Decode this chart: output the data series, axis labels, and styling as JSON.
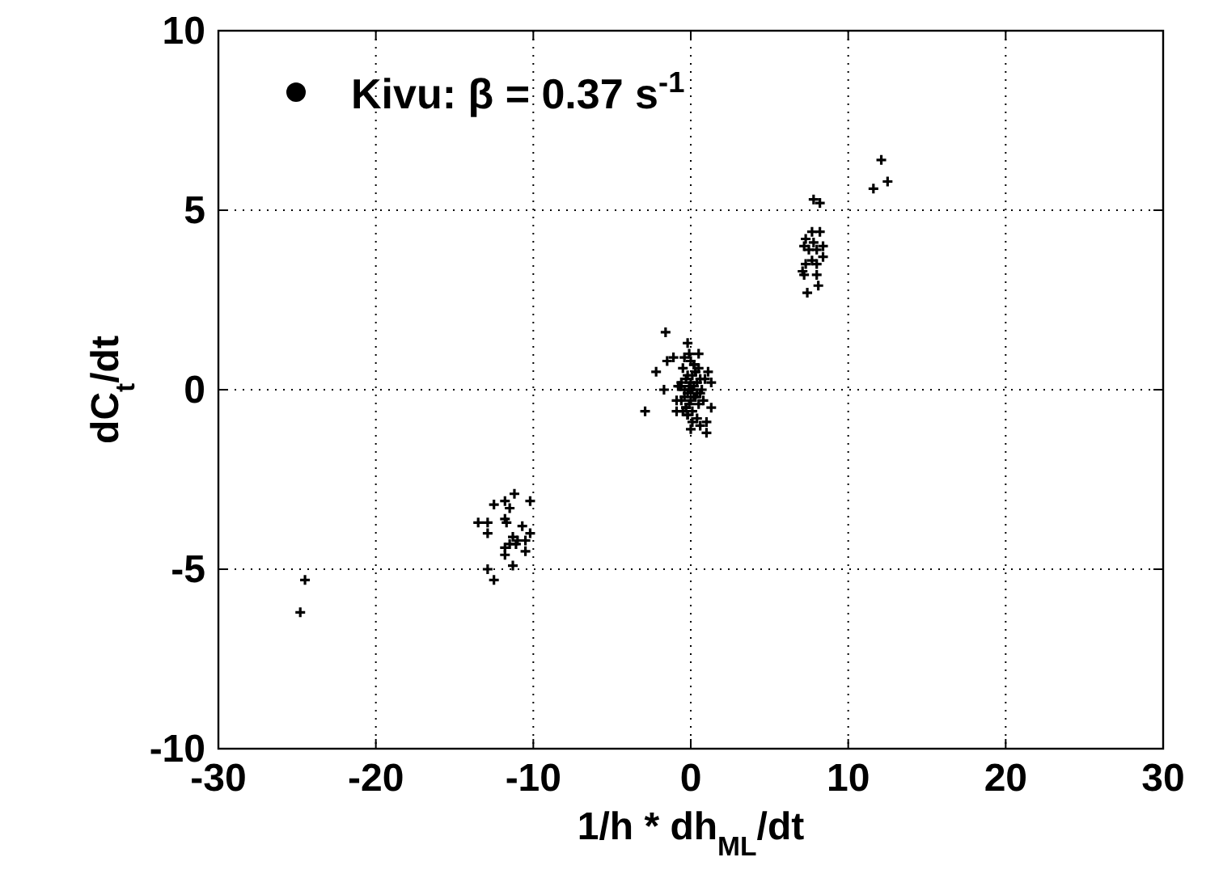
{
  "chart_data": {
    "type": "scatter",
    "xlabel": "1/h * dh$_{ML}$/dt",
    "ylabel": "dC$_{t}$/dt",
    "xlim": [
      -30,
      30
    ],
    "xticks": [
      -30,
      -20,
      -10,
      0,
      10,
      20,
      30
    ],
    "ylim": [
      -10,
      10
    ],
    "yticks": [
      -10,
      -5,
      0,
      5,
      10
    ],
    "grid": true,
    "legend": "top left",
    "marker": "cross",
    "series": [
      {
        "name": "Kivu: β = 0.37 s$^{-1}$",
        "color": "#000000",
        "x": [
          -24.5,
          -24.8,
          -11.2,
          -10.2,
          -11.8,
          -12.5,
          -11.5,
          -11.8,
          -13.5,
          -12.9,
          -12.9,
          -10.7,
          -11.7,
          -10.2,
          -11.3,
          -11.0,
          -11.5,
          -11.8,
          -10.5,
          -10.5,
          -11.8,
          -11.1,
          -11.3,
          -12.9,
          -12.5,
          12.1,
          12.5,
          11.6,
          7.8,
          8.2,
          8.2,
          7.7,
          7.3,
          7.8,
          8.4,
          7.2,
          7.5,
          8.0,
          8.4,
          7.7,
          7.3,
          8.0,
          7.1,
          8.0,
          7.2,
          8.1,
          7.4,
          -1.6,
          -0.2,
          0.5,
          -2.2,
          -1.5,
          -1.1,
          1.1,
          1.3,
          -1.7,
          -2.9,
          1.3,
          1.0,
          1.0,
          0.0,
          -0.9,
          0.0,
          0.2,
          -0.2,
          0.4,
          -0.4,
          0.6,
          -0.6,
          0.1,
          -0.1,
          0.3,
          -0.3,
          0.5,
          -0.5,
          0.7,
          -0.7,
          0.2,
          -0.2,
          0.0,
          0.4,
          -0.4,
          0.1,
          -0.1,
          0.6,
          -0.6,
          0.3,
          -0.3,
          0.8,
          -0.8,
          0.0,
          0.2,
          -0.2,
          0.5,
          -0.5,
          0.1,
          -0.1,
          0.4,
          -0.4,
          0.3,
          -0.3,
          0.0,
          0.9,
          -0.9,
          0.2,
          -0.2,
          0.6,
          -0.6,
          0.1,
          -0.1
        ],
        "values": [
          -5.3,
          -6.2,
          -2.9,
          -3.1,
          -3.1,
          -3.2,
          -3.3,
          -3.6,
          -3.7,
          -3.7,
          -4.0,
          -3.8,
          -3.7,
          -4.0,
          -4.1,
          -4.2,
          -4.3,
          -4.4,
          -4.2,
          -4.5,
          -4.6,
          -4.3,
          -4.9,
          -5.0,
          -5.3,
          6.4,
          5.8,
          5.6,
          5.3,
          5.2,
          4.4,
          4.4,
          4.2,
          4.1,
          4.0,
          4.0,
          3.9,
          3.9,
          3.7,
          3.6,
          3.5,
          3.5,
          3.3,
          3.2,
          3.2,
          2.9,
          2.7,
          1.6,
          1.3,
          1.0,
          0.5,
          0.8,
          0.9,
          0.5,
          0.2,
          0.0,
          -0.6,
          -0.5,
          -0.9,
          -1.2,
          -1.1,
          -0.6,
          0.0,
          0.1,
          -0.1,
          0.2,
          -0.2,
          0.3,
          -0.3,
          0.4,
          -0.4,
          0.5,
          -0.5,
          0.6,
          -0.6,
          0.0,
          0.1,
          0.7,
          -0.7,
          0.8,
          -0.8,
          0.9,
          -0.9,
          1.0,
          -1.0,
          0.2,
          -0.2,
          0.3,
          -0.3,
          0.1,
          0.2,
          -0.2,
          0.4,
          -0.4,
          0.6,
          -0.6,
          0.1,
          -0.1,
          0.0,
          0.5,
          -0.5,
          -0.3,
          0.3,
          -0.3,
          0.7,
          -0.7,
          -0.1,
          0.1,
          0.0,
          0.0
        ]
      }
    ]
  }
}
